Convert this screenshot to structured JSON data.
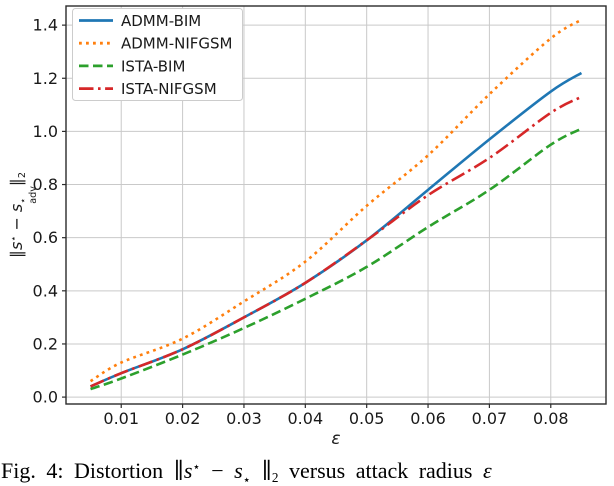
{
  "caption": {
    "prefix": "Fig. 4: Distortion ",
    "suffix": " versus attack radius ",
    "epsilon": "ε"
  },
  "math": {
    "norm": "∥",
    "s": "s",
    "star": "⋆",
    "minus": " − ",
    "adv": "adv",
    "two": "2"
  },
  "chart_data": {
    "type": "line",
    "title": "",
    "xlabel": "ε",
    "ylabel": "‖s⋆ − s⋆adv‖2",
    "x": [
      0.005,
      0.01,
      0.02,
      0.03,
      0.04,
      0.05,
      0.06,
      0.07,
      0.08,
      0.085
    ],
    "series": [
      {
        "name": "ADMM-BIM",
        "color": "#1f77b4",
        "style": "solid",
        "values": [
          0.04,
          0.09,
          0.18,
          0.3,
          0.43,
          0.59,
          0.78,
          0.97,
          1.15,
          1.22
        ]
      },
      {
        "name": "ADMM-NIFGSM",
        "color": "#ff7f0e",
        "style": "dotted",
        "values": [
          0.06,
          0.13,
          0.22,
          0.36,
          0.51,
          0.72,
          0.91,
          1.14,
          1.35,
          1.42
        ]
      },
      {
        "name": "ISTA-BIM",
        "color": "#2ca02c",
        "style": "dashed",
        "values": [
          0.03,
          0.07,
          0.16,
          0.26,
          0.37,
          0.49,
          0.64,
          0.78,
          0.95,
          1.01
        ]
      },
      {
        "name": "ISTA-NIFGSM",
        "color": "#d62728",
        "style": "dashdot",
        "values": [
          0.04,
          0.09,
          0.18,
          0.3,
          0.43,
          0.59,
          0.76,
          0.9,
          1.07,
          1.13
        ]
      }
    ],
    "xticks": [
      0.01,
      0.02,
      0.03,
      0.04,
      0.05,
      0.06,
      0.07,
      0.08
    ],
    "xtick_labels": [
      "0.01",
      "0.02",
      "0.03",
      "0.04",
      "0.05",
      "0.06",
      "0.07",
      "0.08"
    ],
    "yticks": [
      0.0,
      0.2,
      0.4,
      0.6,
      0.8,
      1.0,
      1.2,
      1.4
    ],
    "ytick_labels": [
      "0.0",
      "0.2",
      "0.4",
      "0.6",
      "0.8",
      "1.0",
      "1.2",
      "1.4"
    ],
    "xlim": [
      0.001,
      0.089
    ],
    "ylim": [
      -0.026,
      1.472
    ],
    "grid": true,
    "legend_position": "upper left",
    "grid_color": "#c9c9c9",
    "spine_color": "#2b2b2b",
    "legend_edge_color": "#cccccc"
  }
}
